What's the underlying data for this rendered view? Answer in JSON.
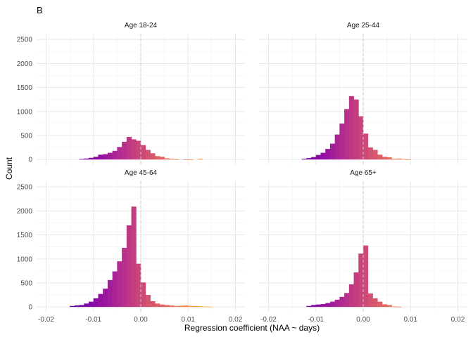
{
  "chart_data": {
    "type": "bar",
    "tag": "B",
    "xlabel": "Regression coefficient (NAA ~ days)",
    "ylabel": "Count",
    "xlim": [
      -0.022,
      0.022
    ],
    "ylim": [
      -100,
      2620
    ],
    "x_ticks": [
      -0.02,
      -0.01,
      0.0,
      0.01,
      0.02
    ],
    "x_tick_labels": [
      "-0.02",
      "-0.01",
      "0.00",
      "0.01",
      "0.02"
    ],
    "y_ticks": [
      0,
      500,
      1000,
      1500,
      2000,
      2500
    ],
    "y_tick_labels": [
      "0",
      "500",
      "1000",
      "1500",
      "2000",
      "2500"
    ],
    "grid": true,
    "reference_line": 0.0,
    "bin_width": 0.001,
    "bin_centers": [
      -0.0175,
      -0.0165,
      -0.0155,
      -0.0145,
      -0.0135,
      -0.0125,
      -0.0115,
      -0.0105,
      -0.0095,
      -0.0085,
      -0.0075,
      -0.0065,
      -0.0055,
      -0.0045,
      -0.0035,
      -0.0025,
      -0.0015,
      -0.0005,
      0.0005,
      0.0015,
      0.0025,
      0.0035,
      0.0045,
      0.0055,
      0.0065,
      0.0075,
      0.0085,
      0.0095,
      0.0105,
      0.0115,
      0.0125,
      0.0135,
      0.0145,
      0.0155,
      0.0165,
      0.0175
    ],
    "palette": [
      "#3b049a",
      "#6a00a8",
      "#8f0da4",
      "#b12a90",
      "#cc4778",
      "#e16462",
      "#f2844b",
      "#fca636",
      "#fcce25"
    ],
    "color_range": [
      -0.018,
      0.018
    ],
    "facets": [
      {
        "name": "Age 18-24",
        "counts": [
          0,
          0,
          0,
          0,
          0,
          10,
          20,
          35,
          55,
          100,
          110,
          140,
          180,
          260,
          370,
          470,
          420,
          390,
          300,
          200,
          130,
          70,
          55,
          25,
          12,
          5,
          0,
          3,
          3,
          0,
          15,
          0,
          0,
          0,
          0,
          0
        ]
      },
      {
        "name": "Age 25-44",
        "counts": [
          0,
          0,
          0,
          0,
          0,
          15,
          30,
          50,
          95,
          140,
          220,
          330,
          520,
          750,
          1050,
          1320,
          1250,
          900,
          540,
          250,
          200,
          100,
          55,
          45,
          15,
          20,
          10,
          5,
          0,
          0,
          0,
          0,
          0,
          0,
          0,
          0
        ]
      },
      {
        "name": "Age 45-64",
        "counts": [
          0,
          0,
          0,
          20,
          30,
          40,
          70,
          110,
          180,
          270,
          380,
          560,
          740,
          950,
          1230,
          1700,
          2090,
          900,
          510,
          250,
          120,
          70,
          50,
          40,
          30,
          20,
          25,
          30,
          20,
          20,
          15,
          10,
          5,
          0,
          0,
          0
        ]
      },
      {
        "name": "Age 65+",
        "counts": [
          0,
          0,
          0,
          0,
          0,
          0,
          20,
          40,
          50,
          60,
          80,
          110,
          150,
          210,
          290,
          470,
          720,
          1110,
          1280,
          280,
          180,
          110,
          55,
          40,
          10,
          5,
          0,
          0,
          0,
          0,
          0,
          0,
          0,
          0,
          0,
          0
        ]
      }
    ]
  }
}
